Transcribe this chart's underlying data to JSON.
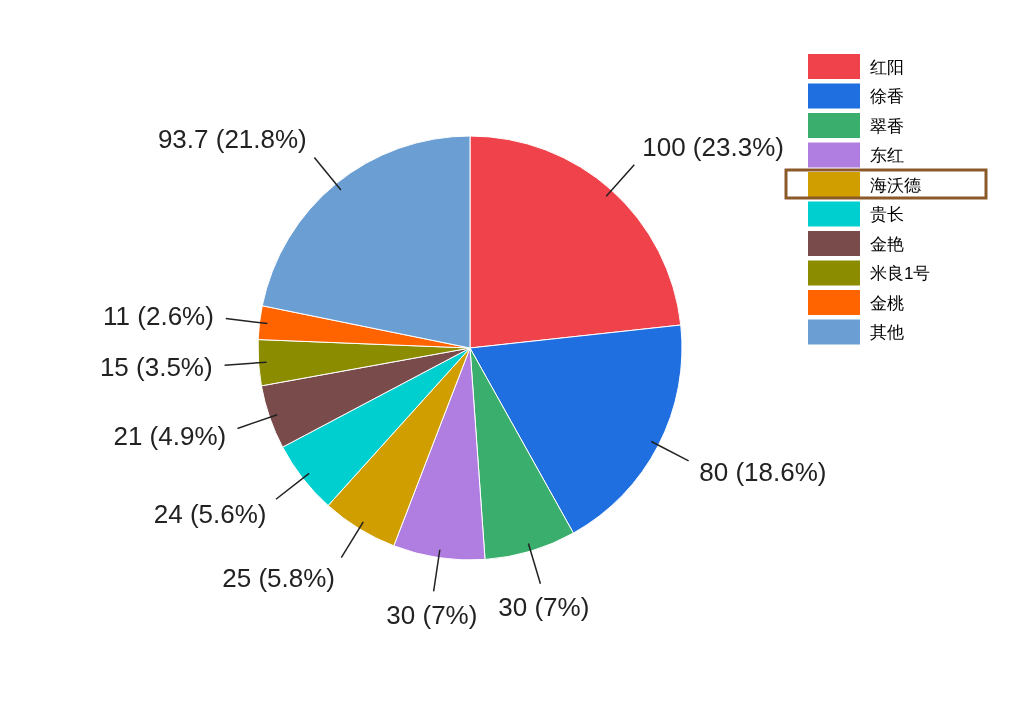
{
  "chart_data": {
    "type": "pie",
    "categories": [
      "红阳",
      "徐香",
      "翠香",
      "东红",
      "海沃德",
      "贵长",
      "金艳",
      "米良1号",
      "金桃",
      "其他"
    ],
    "values": [
      100,
      80,
      30,
      30,
      25,
      24,
      21,
      15,
      11,
      93.7
    ],
    "colors": [
      "#f0424a",
      "#1f6fe0",
      "#3aae6c",
      "#b07ee0",
      "#d19e00",
      "#00cfcf",
      "#7a4b4b",
      "#8c8c00",
      "#ff6400",
      "#6b9fd4"
    ],
    "value_labels": [
      "100 (23.3%)",
      "80 (18.6%)",
      "30 (7%)",
      "30 (7%)",
      "25 (5.8%)",
      "24 (5.6%)",
      "21 (4.9%)",
      "15 (3.5%)",
      "11 (2.6%)",
      "93.7 (21.8%)"
    ],
    "legend": "top right"
  }
}
